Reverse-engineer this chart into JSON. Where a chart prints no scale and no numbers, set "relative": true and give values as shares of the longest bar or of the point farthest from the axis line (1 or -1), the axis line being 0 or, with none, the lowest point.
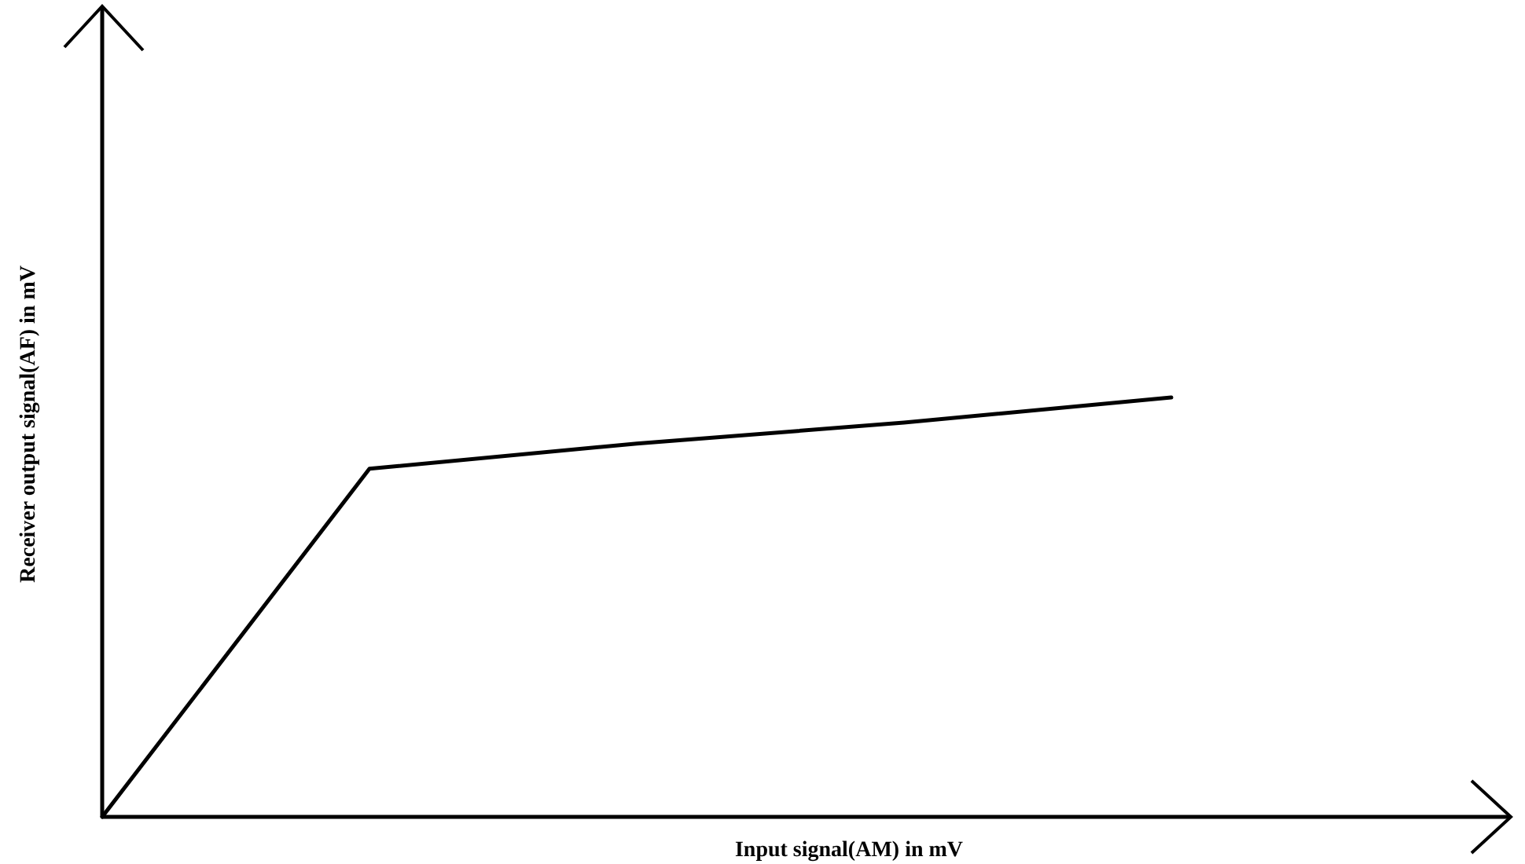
{
  "chart_data": {
    "type": "line",
    "xlabel": "Input signal(AM)  in mV",
    "ylabel": "Receiver output signal(AF)  in mV",
    "relative": true,
    "categories": [
      null,
      null,
      null,
      null,
      null
    ],
    "series": [
      {
        "color": "#000000",
        "values": [
          0,
          0.83,
          0.89,
          0.94,
          1
        ]
      }
    ],
    "line_style": "solid"
  }
}
